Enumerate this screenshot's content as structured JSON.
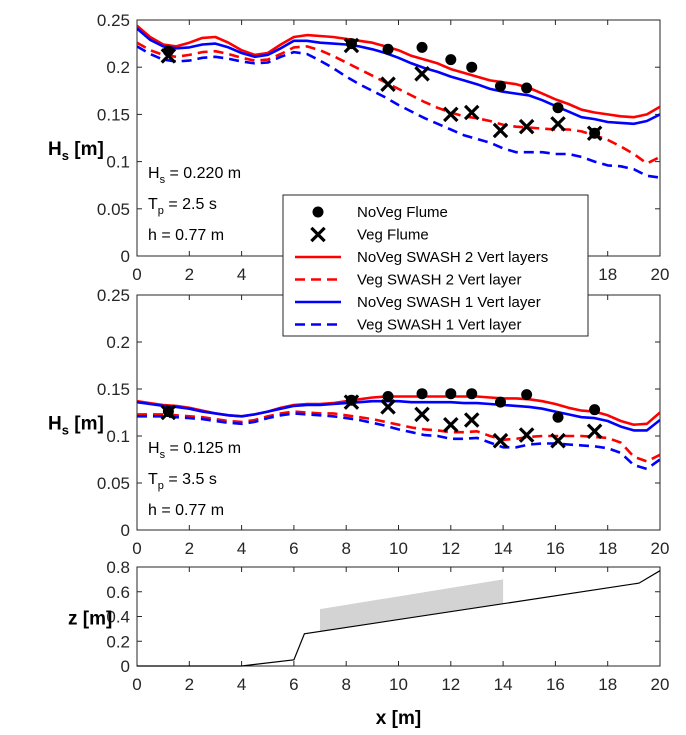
{
  "chart_data": [
    {
      "type": "line",
      "panel": "top",
      "xlim": [
        0,
        20
      ],
      "ylim": [
        0,
        0.25
      ],
      "xticks": [
        "0",
        "2",
        "4",
        "6",
        "8",
        "10",
        "12",
        "14",
        "16",
        "18",
        "20"
      ],
      "yticks": [
        "0",
        "0.05",
        "0.1",
        "0.15",
        "0.2",
        "0.25"
      ],
      "ylabel_main": "H",
      "ylabel_sub": "s",
      "ylabel_unit": " [m]",
      "annotations": [
        {
          "main": "H",
          "sub": "s",
          "rest": " = 0.220 m"
        },
        {
          "main": "T",
          "sub": "p",
          "rest": " = 2.5 s"
        },
        {
          "main": "h = 0.77 m",
          "sub": "",
          "rest": ""
        }
      ],
      "series": [
        {
          "name": "NoVeg Flume",
          "kind": "dots",
          "color": "#000000",
          "x": [
            1.2,
            8.2,
            9.6,
            10.9,
            12.0,
            12.8,
            13.9,
            14.9,
            16.1,
            17.5
          ],
          "y": [
            0.217,
            0.225,
            0.219,
            0.221,
            0.208,
            0.2,
            0.18,
            0.178,
            0.157,
            0.13
          ]
        },
        {
          "name": "Veg Flume",
          "kind": "crosses",
          "color": "#000000",
          "x": [
            1.2,
            8.2,
            9.6,
            10.9,
            12.0,
            12.8,
            13.9,
            14.9,
            16.1,
            17.5
          ],
          "y": [
            0.212,
            0.223,
            0.182,
            0.193,
            0.15,
            0.152,
            0.133,
            0.137,
            0.14,
            0.13
          ]
        },
        {
          "name": "NoVeg SWASH 2 Vert layers",
          "kind": "line",
          "color": "#ff0000",
          "dash": "",
          "x": [
            0,
            0.5,
            1,
            1.5,
            2,
            2.5,
            3,
            3.5,
            4,
            4.5,
            5,
            5.5,
            6,
            6.5,
            7,
            7.5,
            8,
            8.5,
            9,
            9.5,
            10,
            10.5,
            11,
            11.5,
            12,
            12.5,
            13,
            13.5,
            14,
            14.5,
            15,
            15.5,
            16,
            16.5,
            17,
            17.5,
            18,
            18.5,
            19,
            19.5,
            20
          ],
          "y": [
            0.244,
            0.232,
            0.224,
            0.222,
            0.226,
            0.231,
            0.232,
            0.226,
            0.218,
            0.213,
            0.215,
            0.224,
            0.232,
            0.234,
            0.233,
            0.232,
            0.23,
            0.228,
            0.226,
            0.222,
            0.218,
            0.212,
            0.208,
            0.204,
            0.198,
            0.194,
            0.19,
            0.186,
            0.184,
            0.182,
            0.178,
            0.172,
            0.166,
            0.161,
            0.155,
            0.152,
            0.15,
            0.148,
            0.147,
            0.15,
            0.158
          ]
        },
        {
          "name": "Veg SWASH 2 Vert layer",
          "kind": "line",
          "color": "#ff0000",
          "dash": "10,6",
          "x": [
            0,
            0.5,
            1,
            1.5,
            2,
            2.5,
            3,
            3.5,
            4,
            4.5,
            5,
            5.5,
            6,
            6.5,
            7,
            7.5,
            8,
            8.5,
            9,
            9.5,
            10,
            10.5,
            11,
            11.5,
            12,
            12.5,
            13,
            13.5,
            14,
            14.5,
            15,
            15.5,
            16,
            16.5,
            17,
            17.5,
            18,
            18.5,
            19,
            19.5,
            20
          ],
          "y": [
            0.226,
            0.218,
            0.213,
            0.211,
            0.213,
            0.216,
            0.217,
            0.214,
            0.21,
            0.207,
            0.208,
            0.214,
            0.221,
            0.222,
            0.218,
            0.212,
            0.205,
            0.198,
            0.191,
            0.184,
            0.177,
            0.17,
            0.163,
            0.157,
            0.152,
            0.148,
            0.146,
            0.143,
            0.139,
            0.137,
            0.136,
            0.135,
            0.134,
            0.134,
            0.132,
            0.128,
            0.123,
            0.116,
            0.108,
            0.098,
            0.105
          ]
        },
        {
          "name": "NoVeg  SWASH 1 Vert layer",
          "kind": "line",
          "color": "#0000ff",
          "dash": "",
          "x": [
            0,
            0.5,
            1,
            1.5,
            2,
            2.5,
            3,
            3.5,
            4,
            4.5,
            5,
            5.5,
            6,
            6.5,
            7,
            7.5,
            8,
            8.5,
            9,
            9.5,
            10,
            10.5,
            11,
            11.5,
            12,
            12.5,
            13,
            13.5,
            14,
            14.5,
            15,
            15.5,
            16,
            16.5,
            17,
            17.5,
            18,
            18.5,
            19,
            19.5,
            20
          ],
          "y": [
            0.241,
            0.229,
            0.222,
            0.22,
            0.221,
            0.224,
            0.225,
            0.221,
            0.215,
            0.211,
            0.213,
            0.22,
            0.228,
            0.228,
            0.226,
            0.225,
            0.224,
            0.222,
            0.219,
            0.215,
            0.21,
            0.204,
            0.199,
            0.195,
            0.19,
            0.186,
            0.182,
            0.177,
            0.174,
            0.172,
            0.17,
            0.165,
            0.159,
            0.153,
            0.147,
            0.145,
            0.142,
            0.141,
            0.14,
            0.143,
            0.15
          ]
        },
        {
          "name": "Veg SWASH 1 Vert layer",
          "kind": "line",
          "color": "#0000ff",
          "dash": "10,6",
          "x": [
            0,
            0.5,
            1,
            1.5,
            2,
            2.5,
            3,
            3.5,
            4,
            4.5,
            5,
            5.5,
            6,
            6.5,
            7,
            7.5,
            8,
            8.5,
            9,
            9.5,
            10,
            10.5,
            11,
            11.5,
            12,
            12.5,
            13,
            13.5,
            14,
            14.5,
            15,
            15.5,
            16,
            16.5,
            17,
            17.5,
            18,
            18.5,
            19,
            19.5,
            20
          ],
          "y": [
            0.222,
            0.214,
            0.208,
            0.206,
            0.207,
            0.21,
            0.211,
            0.209,
            0.206,
            0.204,
            0.205,
            0.211,
            0.216,
            0.214,
            0.207,
            0.199,
            0.19,
            0.182,
            0.175,
            0.168,
            0.16,
            0.153,
            0.146,
            0.14,
            0.134,
            0.128,
            0.124,
            0.12,
            0.114,
            0.11,
            0.11,
            0.11,
            0.108,
            0.108,
            0.105,
            0.1,
            0.096,
            0.095,
            0.092,
            0.085,
            0.083
          ]
        }
      ]
    },
    {
      "type": "line",
      "panel": "middle",
      "xlim": [
        0,
        20
      ],
      "ylim": [
        0,
        0.25
      ],
      "xticks": [
        "0",
        "2",
        "4",
        "6",
        "8",
        "10",
        "12",
        "14",
        "16",
        "18",
        "20"
      ],
      "yticks": [
        "0",
        "0.05",
        "0.1",
        "0.15",
        "0.2",
        "0.25"
      ],
      "ylabel_main": "H",
      "ylabel_sub": "s",
      "ylabel_unit": " [m]",
      "annotations": [
        {
          "main": "H",
          "sub": "s",
          "rest": " = 0.125 m"
        },
        {
          "main": "T",
          "sub": "p",
          "rest": " = 3.5 s"
        },
        {
          "main": "h = 0.77 m",
          "sub": "",
          "rest": ""
        }
      ],
      "series": [
        {
          "name": "NoVeg Flume",
          "kind": "dots",
          "color": "#000000",
          "x": [
            1.2,
            8.2,
            9.6,
            10.9,
            12.0,
            12.8,
            13.9,
            14.9,
            16.1,
            17.5
          ],
          "y": [
            0.126,
            0.138,
            0.142,
            0.145,
            0.145,
            0.145,
            0.136,
            0.144,
            0.12,
            0.128
          ]
        },
        {
          "name": "Veg Flume",
          "kind": "crosses",
          "color": "#000000",
          "x": [
            1.2,
            8.2,
            9.6,
            10.9,
            12.0,
            12.8,
            13.9,
            14.9,
            16.1,
            17.5
          ],
          "y": [
            0.125,
            0.136,
            0.131,
            0.123,
            0.112,
            0.117,
            0.095,
            0.101,
            0.095,
            0.105
          ]
        },
        {
          "name": "NoVeg SWASH 2 Vert layers",
          "kind": "line",
          "color": "#ff0000",
          "dash": "",
          "x": [
            0,
            0.5,
            1,
            1.5,
            2,
            2.5,
            3,
            3.5,
            4,
            4.5,
            5,
            5.5,
            6,
            6.5,
            7,
            7.5,
            8,
            8.5,
            9,
            9.5,
            10,
            10.5,
            11,
            11.5,
            12,
            12.5,
            13,
            13.5,
            14,
            14.5,
            15,
            15.5,
            16,
            16.5,
            17,
            17.5,
            18,
            18.5,
            19,
            19.5,
            20
          ],
          "y": [
            0.137,
            0.135,
            0.133,
            0.132,
            0.13,
            0.127,
            0.124,
            0.122,
            0.121,
            0.123,
            0.126,
            0.13,
            0.133,
            0.134,
            0.134,
            0.135,
            0.137,
            0.139,
            0.141,
            0.142,
            0.142,
            0.142,
            0.142,
            0.142,
            0.142,
            0.142,
            0.142,
            0.141,
            0.14,
            0.14,
            0.139,
            0.137,
            0.134,
            0.13,
            0.127,
            0.126,
            0.122,
            0.116,
            0.112,
            0.113,
            0.125
          ]
        },
        {
          "name": "Veg SWASH 2 Vert layer",
          "kind": "line",
          "color": "#ff0000",
          "dash": "10,6",
          "x": [
            0,
            0.5,
            1,
            1.5,
            2,
            2.5,
            3,
            3.5,
            4,
            4.5,
            5,
            5.5,
            6,
            6.5,
            7,
            7.5,
            8,
            8.5,
            9,
            9.5,
            10,
            10.5,
            11,
            11.5,
            12,
            12.5,
            13,
            13.5,
            14,
            14.5,
            15,
            15.5,
            16,
            16.5,
            17,
            17.5,
            18,
            18.5,
            19,
            19.5,
            20
          ],
          "y": [
            0.123,
            0.123,
            0.123,
            0.122,
            0.121,
            0.12,
            0.118,
            0.116,
            0.115,
            0.117,
            0.121,
            0.124,
            0.126,
            0.125,
            0.124,
            0.124,
            0.122,
            0.12,
            0.118,
            0.115,
            0.112,
            0.109,
            0.107,
            0.106,
            0.104,
            0.104,
            0.105,
            0.1,
            0.096,
            0.097,
            0.099,
            0.1,
            0.1,
            0.1,
            0.1,
            0.099,
            0.098,
            0.093,
            0.078,
            0.073,
            0.08
          ]
        },
        {
          "name": "NoVeg  SWASH 1 Vert layer",
          "kind": "line",
          "color": "#0000ff",
          "dash": "",
          "x": [
            0,
            0.5,
            1,
            1.5,
            2,
            2.5,
            3,
            3.5,
            4,
            4.5,
            5,
            5.5,
            6,
            6.5,
            7,
            7.5,
            8,
            8.5,
            9,
            9.5,
            10,
            10.5,
            11,
            11.5,
            12,
            12.5,
            13,
            13.5,
            14,
            14.5,
            15,
            15.5,
            16,
            16.5,
            17,
            17.5,
            18,
            18.5,
            19,
            19.5,
            20
          ],
          "y": [
            0.136,
            0.134,
            0.132,
            0.131,
            0.129,
            0.126,
            0.124,
            0.122,
            0.121,
            0.123,
            0.126,
            0.129,
            0.132,
            0.133,
            0.133,
            0.134,
            0.135,
            0.136,
            0.137,
            0.137,
            0.137,
            0.136,
            0.136,
            0.136,
            0.136,
            0.135,
            0.135,
            0.134,
            0.133,
            0.132,
            0.131,
            0.129,
            0.126,
            0.123,
            0.12,
            0.119,
            0.116,
            0.11,
            0.106,
            0.106,
            0.117
          ]
        },
        {
          "name": "Veg SWASH 1 Vert layer",
          "kind": "line",
          "color": "#0000ff",
          "dash": "10,6",
          "x": [
            0,
            0.5,
            1,
            1.5,
            2,
            2.5,
            3,
            3.5,
            4,
            4.5,
            5,
            5.5,
            6,
            6.5,
            7,
            7.5,
            8,
            8.5,
            9,
            9.5,
            10,
            10.5,
            11,
            11.5,
            12,
            12.5,
            13,
            13.5,
            14,
            14.5,
            15,
            15.5,
            16,
            16.5,
            17,
            17.5,
            18,
            18.5,
            19,
            19.5,
            20
          ],
          "y": [
            0.121,
            0.121,
            0.121,
            0.12,
            0.119,
            0.118,
            0.116,
            0.114,
            0.113,
            0.115,
            0.119,
            0.122,
            0.124,
            0.123,
            0.122,
            0.121,
            0.119,
            0.117,
            0.114,
            0.111,
            0.107,
            0.104,
            0.101,
            0.1,
            0.097,
            0.097,
            0.098,
            0.093,
            0.088,
            0.088,
            0.091,
            0.092,
            0.092,
            0.091,
            0.09,
            0.089,
            0.087,
            0.082,
            0.069,
            0.065,
            0.075
          ]
        }
      ]
    },
    {
      "type": "area",
      "panel": "bottom",
      "xlim": [
        0,
        20
      ],
      "ylim": [
        0,
        0.8
      ],
      "xticks": [
        "0",
        "2",
        "4",
        "6",
        "8",
        "10",
        "12",
        "14",
        "16",
        "18",
        "20"
      ],
      "yticks": [
        "0",
        "0.2",
        "0.4",
        "0.6",
        "0.8"
      ],
      "ylabel": "z [m]",
      "xlabel": "x [m]",
      "bathymetry": {
        "color": "#000000",
        "x": [
          0,
          4.0,
          6.0,
          6.4,
          19.2,
          20.0
        ],
        "y": [
          0.0,
          0.0,
          0.05,
          0.26,
          0.67,
          0.77
        ]
      },
      "vegetation_patch": {
        "color": "#d3d3d3",
        "x": [
          7.0,
          14.0
        ],
        "bottom": [
          0.28,
          0.5
        ],
        "top": [
          0.46,
          0.7
        ]
      }
    }
  ],
  "legend": {
    "entries": [
      {
        "label": "NoVeg Flume",
        "kind": "dot",
        "color": "#000000",
        "dash": ""
      },
      {
        "label": "Veg Flume",
        "kind": "cross",
        "color": "#000000",
        "dash": ""
      },
      {
        "label": "NoVeg SWASH 2 Vert layers",
        "kind": "line",
        "color": "#ff0000",
        "dash": ""
      },
      {
        "label": "Veg SWASH 2 Vert layer",
        "kind": "line",
        "color": "#ff0000",
        "dash": "10,6"
      },
      {
        "label": "NoVeg  SWASH 1 Vert layer",
        "kind": "line",
        "color": "#0000ff",
        "dash": ""
      },
      {
        "label": "Veg SWASH 1 Vert layer",
        "kind": "line",
        "color": "#0000ff",
        "dash": "10,6"
      }
    ]
  }
}
